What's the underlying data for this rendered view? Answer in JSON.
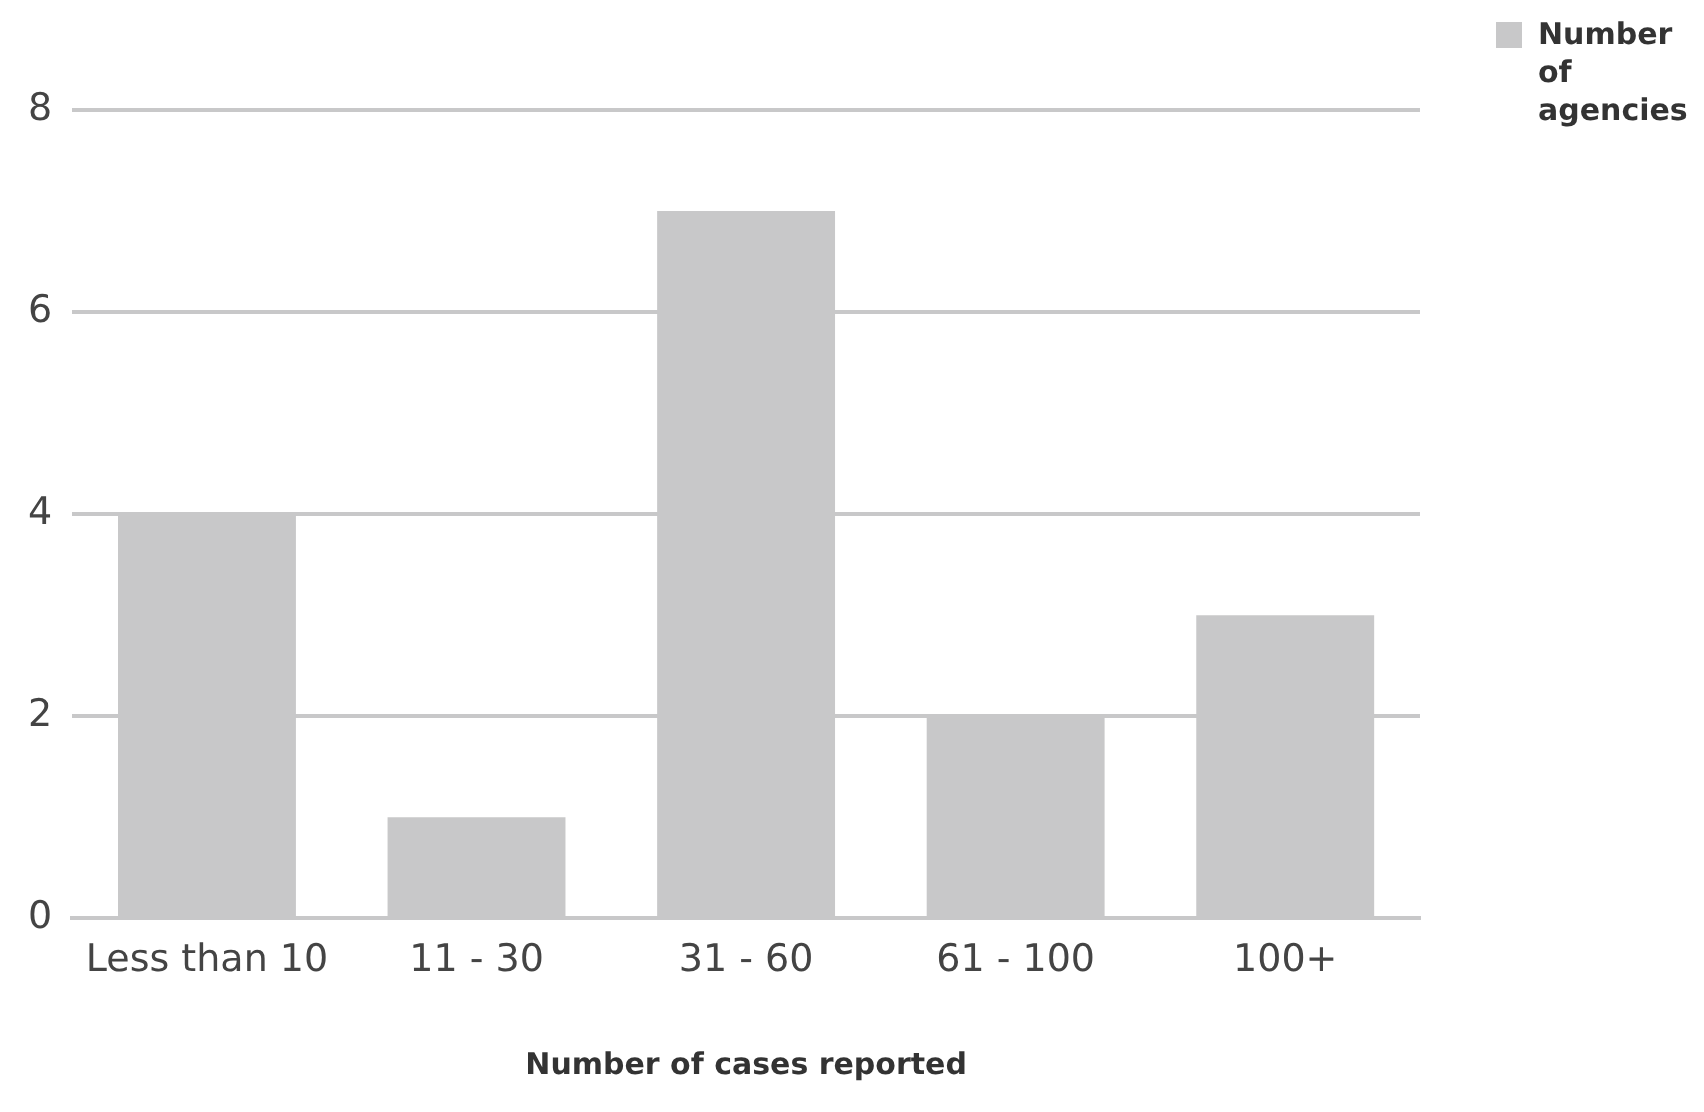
{
  "chart_data": {
    "type": "bar",
    "xlabel": "Number of cases reported",
    "categories": [
      "Less than 10",
      "11 - 30",
      "31 - 60",
      "61 - 100",
      "100+"
    ],
    "series": [
      {
        "name": "Number of agencies",
        "color": "#c8c8c9",
        "values": [
          4,
          1,
          7,
          2,
          3
        ]
      }
    ],
    "ylim": [
      0,
      8
    ],
    "yticks": [
      0,
      2,
      4,
      6,
      8
    ],
    "grid": "y",
    "legend": "top right"
  }
}
